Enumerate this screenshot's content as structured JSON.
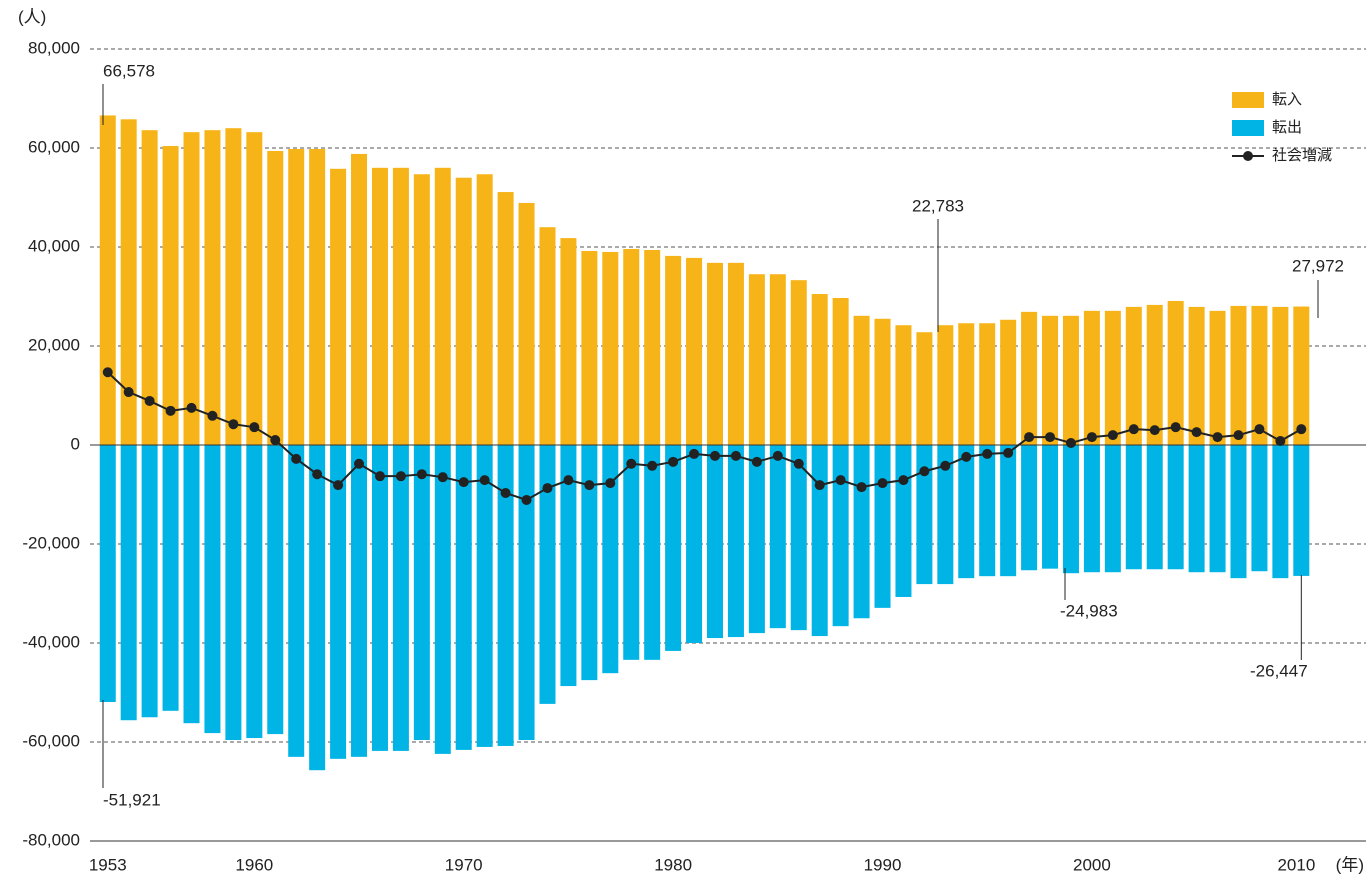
{
  "chart_data": {
    "type": "bar-line",
    "y_label": "(人)",
    "x_label": "(年)",
    "x": [
      1953,
      1954,
      1955,
      1956,
      1957,
      1958,
      1959,
      1960,
      1961,
      1962,
      1963,
      1964,
      1965,
      1966,
      1967,
      1968,
      1969,
      1970,
      1971,
      1972,
      1973,
      1974,
      1975,
      1976,
      1977,
      1978,
      1979,
      1980,
      1981,
      1982,
      1983,
      1984,
      1985,
      1986,
      1987,
      1988,
      1989,
      1990,
      1991,
      1992,
      1993,
      1994,
      1995,
      1996,
      1997,
      1998,
      1999,
      2000,
      2001,
      2002,
      2003,
      2004,
      2005,
      2006,
      2007,
      2008,
      2009,
      2010
    ],
    "xlim": [
      1952.2,
      2011.8
    ],
    "xticks": [
      1953,
      1960,
      1970,
      1980,
      1990,
      2000,
      2010
    ],
    "ylim": [
      -80000,
      80000
    ],
    "yticks": [
      {
        "value": -80000,
        "label": "-80,000"
      },
      {
        "value": -60000,
        "label": "-60,000"
      },
      {
        "value": -40000,
        "label": "-40,000"
      },
      {
        "value": -20000,
        "label": "-20,000"
      },
      0,
      {
        "value": 20000,
        "label": "20,000"
      },
      {
        "value": 40000,
        "label": "40,000"
      },
      {
        "value": 60000,
        "label": "60,000"
      },
      {
        "value": 80000,
        "label": "80,000"
      }
    ],
    "grid": true,
    "legend": "top-right",
    "series": [
      {
        "name": "転入",
        "kind": "bar",
        "color": "#f7b418",
        "values": [
          66578,
          65800,
          63600,
          60400,
          63200,
          63600,
          64000,
          63200,
          59400,
          59800,
          59800,
          55800,
          58800,
          56000,
          56000,
          54700,
          56000,
          54000,
          54700,
          51100,
          48900,
          44000,
          41800,
          39200,
          39000,
          39600,
          39400,
          38200,
          37800,
          36800,
          36800,
          34500,
          34500,
          33300,
          30500,
          29700,
          26100,
          25500,
          24200,
          22783,
          24200,
          24600,
          24600,
          25300,
          26900,
          26100,
          26100,
          27100,
          27100,
          27900,
          28300,
          29100,
          27900,
          27100,
          28100,
          28100,
          27900,
          27972
        ],
        "value_labels": [
          "66,578",
          null,
          null,
          null,
          null,
          null,
          null,
          null,
          null,
          null,
          null,
          null,
          null,
          null,
          null,
          null,
          null,
          null,
          null,
          null,
          null,
          null,
          null,
          null,
          null,
          null,
          null,
          null,
          null,
          null,
          null,
          null,
          null,
          null,
          null,
          null,
          null,
          null,
          null,
          "22,783",
          null,
          null,
          null,
          null,
          null,
          null,
          null,
          null,
          null,
          null,
          null,
          null,
          null,
          null,
          null,
          null,
          null,
          "27,972"
        ]
      },
      {
        "name": "転出",
        "kind": "bar",
        "color": "#00b4e6",
        "values": [
          -51921,
          -55600,
          -55000,
          -53700,
          -56200,
          -58200,
          -59600,
          -59200,
          -58400,
          -63000,
          -65700,
          -63400,
          -63000,
          -61800,
          -61800,
          -59600,
          -62400,
          -61600,
          -61000,
          -60800,
          -59600,
          -52300,
          -48700,
          -47500,
          -46100,
          -43400,
          -43400,
          -41600,
          -40000,
          -39000,
          -38800,
          -38000,
          -37000,
          -37400,
          -38600,
          -36600,
          -35000,
          -32900,
          -30700,
          -28100,
          -28100,
          -26900,
          -26500,
          -26500,
          -25300,
          -24983,
          -25900,
          -25700,
          -25700,
          -25100,
          -25100,
          -25100,
          -25700,
          -25700,
          -26900,
          -25500,
          -26900,
          -26447
        ],
        "value_labels": [
          "-51,921",
          null,
          null,
          null,
          null,
          null,
          null,
          null,
          null,
          null,
          null,
          null,
          null,
          null,
          null,
          null,
          null,
          null,
          null,
          null,
          null,
          null,
          null,
          null,
          null,
          null,
          null,
          null,
          null,
          null,
          null,
          null,
          null,
          null,
          null,
          null,
          null,
          null,
          null,
          null,
          null,
          null,
          null,
          null,
          null,
          "-24,983",
          null,
          null,
          null,
          null,
          null,
          null,
          null,
          null,
          null,
          null,
          null,
          "-26,447"
        ]
      },
      {
        "name": "社会増減",
        "kind": "line",
        "color": "#222222",
        "values": [
          14700,
          10700,
          8900,
          6900,
          7500,
          5900,
          4200,
          3600,
          1000,
          -2800,
          -5900,
          -8100,
          -3800,
          -6300,
          -6300,
          -5900,
          -6500,
          -7500,
          -7100,
          -9700,
          -11100,
          -8700,
          -7100,
          -8100,
          -7700,
          -3800,
          -4200,
          -3400,
          -1800,
          -2200,
          -2200,
          -3400,
          -2200,
          -3800,
          -8100,
          -7100,
          -8500,
          -7700,
          -7100,
          -5300,
          -4200,
          -2400,
          -1800,
          -1600,
          1600,
          1600,
          400,
          1600,
          2000,
          3200,
          3000,
          3600,
          2600,
          1600,
          2000,
          3200,
          800,
          3200
        ]
      }
    ]
  }
}
